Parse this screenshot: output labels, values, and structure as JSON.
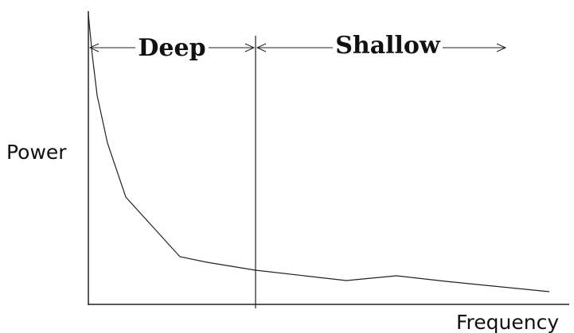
{
  "y_axis_label": "Power",
  "x_axis_label": "Frequency",
  "regions": [
    "Deep",
    "Shallow"
  ]
}
